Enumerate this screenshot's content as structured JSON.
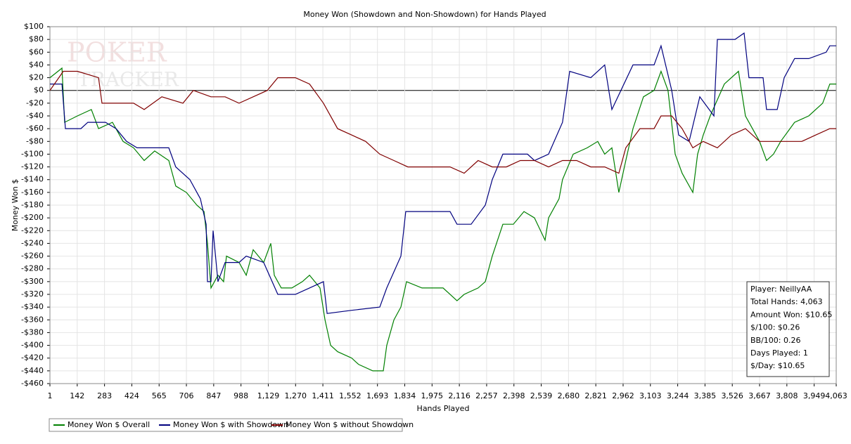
{
  "chart_data": {
    "type": "line",
    "title": "Money Won (Showdown and Non-Showdown) for Hands Played",
    "x_label": "Hands Played",
    "y_label": "Money Won $",
    "xlim": [
      1,
      4063
    ],
    "ylim": [
      -460,
      100
    ],
    "grid": true,
    "legend": "bottom",
    "xticks": [
      1,
      142,
      283,
      424,
      565,
      706,
      847,
      988,
      {
        "value": 1129,
        "label": "1,129"
      },
      {
        "value": 1270,
        "label": "1,270"
      },
      {
        "value": 1411,
        "label": "1,411"
      },
      {
        "value": 1552,
        "label": "1,552"
      },
      {
        "value": 1693,
        "label": "1,693"
      },
      {
        "value": 1834,
        "label": "1,834"
      },
      {
        "value": 1975,
        "label": "1,975"
      },
      {
        "value": 2116,
        "label": "2,116"
      },
      {
        "value": 2257,
        "label": "2,257"
      },
      {
        "value": 2398,
        "label": "2,398"
      },
      {
        "value": 2539,
        "label": "2,539"
      },
      {
        "value": 2680,
        "label": "2,680"
      },
      {
        "value": 2821,
        "label": "2,821"
      },
      {
        "value": 2962,
        "label": "2,962"
      },
      {
        "value": 3103,
        "label": "3,103"
      },
      {
        "value": 3244,
        "label": "3,244"
      },
      {
        "value": 3385,
        "label": "3,385"
      },
      {
        "value": 3526,
        "label": "3,526"
      },
      {
        "value": 3667,
        "label": "3,667"
      },
      {
        "value": 3808,
        "label": "3,808"
      },
      {
        "value": 3949,
        "label": "3,949"
      },
      {
        "value": 4063,
        "label": "4,063"
      }
    ],
    "yticks": [
      {
        "value": 100,
        "label": "$100"
      },
      {
        "value": 80,
        "label": "$80"
      },
      {
        "value": 60,
        "label": "$60"
      },
      {
        "value": 40,
        "label": "$40"
      },
      {
        "value": 20,
        "label": "$20"
      },
      {
        "value": 0,
        "label": "$0"
      },
      {
        "value": -20,
        "label": "-$20"
      },
      {
        "value": -40,
        "label": "-$40"
      },
      {
        "value": -60,
        "label": "-$60"
      },
      {
        "value": -80,
        "label": "-$80"
      },
      {
        "value": -100,
        "label": "-$100"
      },
      {
        "value": -120,
        "label": "-$120"
      },
      {
        "value": -140,
        "label": "-$140"
      },
      {
        "value": -160,
        "label": "-$160"
      },
      {
        "value": -180,
        "label": "-$180"
      },
      {
        "value": -200,
        "label": "-$200"
      },
      {
        "value": -220,
        "label": "-$220"
      },
      {
        "value": -240,
        "label": "-$240"
      },
      {
        "value": -260,
        "label": "-$260"
      },
      {
        "value": -280,
        "label": "-$280"
      },
      {
        "value": -300,
        "label": "-$300"
      },
      {
        "value": -320,
        "label": "-$320"
      },
      {
        "value": -340,
        "label": "-$340"
      },
      {
        "value": -360,
        "label": "-$360"
      },
      {
        "value": -380,
        "label": "-$380"
      },
      {
        "value": -400,
        "label": "-$400"
      },
      {
        "value": -420,
        "label": "-$420"
      },
      {
        "value": -440,
        "label": "-$440"
      },
      {
        "value": -460,
        "label": "-$460"
      }
    ],
    "series": [
      {
        "name": "Money Won $ Overall",
        "color": "#008000",
        "x": [
          1,
          63,
          77,
          143,
          215,
          252,
          324,
          379,
          433,
          488,
          542,
          615,
          651,
          706,
          760,
          797,
          815,
          833,
          869,
          898,
          913,
          978,
          1015,
          1051,
          1105,
          1142,
          1160,
          1196,
          1251,
          1305,
          1342,
          1396,
          1422,
          1451,
          1487,
          1560,
          1596,
          1669,
          1723,
          1741,
          1778,
          1814,
          1843,
          1923,
          2032,
          2104,
          2141,
          2213,
          2250,
          2286,
          2341,
          2395,
          2450,
          2504,
          2559,
          2577,
          2631,
          2649,
          2704,
          2777,
          2831,
          2867,
          2904,
          2940,
          2976,
          3013,
          3067,
          3122,
          3158,
          3194,
          3231,
          3267,
          3322,
          3347,
          3376,
          3412,
          3485,
          3558,
          3594,
          3667,
          3703,
          3739,
          3776,
          3848,
          3921,
          3993,
          4030,
          4063
        ],
        "values": [
          20,
          35,
          -50,
          -40,
          -30,
          -60,
          -50,
          -80,
          -90,
          -110,
          -95,
          -110,
          -150,
          -160,
          -180,
          -190,
          -240,
          -310,
          -290,
          -300,
          -260,
          -270,
          -290,
          -250,
          -270,
          -240,
          -290,
          -310,
          -310,
          -300,
          -290,
          -310,
          -360,
          -400,
          -410,
          -420,
          -430,
          -440,
          -440,
          -400,
          -360,
          -340,
          -300,
          -310,
          -310,
          -330,
          -320,
          -310,
          -300,
          -260,
          -210,
          -210,
          -190,
          -200,
          -235,
          -200,
          -170,
          -140,
          -100,
          -90,
          -80,
          -100,
          -90,
          -160,
          -110,
          -60,
          -10,
          0,
          30,
          0,
          -100,
          -130,
          -160,
          -100,
          -70,
          -40,
          10,
          30,
          -40,
          -80,
          -110,
          -100,
          -80,
          -50,
          -40,
          -20,
          10,
          10
        ]
      },
      {
        "name": "Money Won $ with Showdown",
        "color": "#00007f",
        "x": [
          1,
          63,
          81,
          161,
          197,
          288,
          343,
          397,
          451,
          615,
          651,
          724,
          778,
          808,
          815,
          833,
          844,
          869,
          906,
          978,
          1015,
          1105,
          1178,
          1269,
          1342,
          1414,
          1433,
          1560,
          1705,
          1741,
          1814,
          1839,
          1923,
          2068,
          2104,
          2177,
          2250,
          2286,
          2341,
          2395,
          2468,
          2504,
          2577,
          2649,
          2686,
          2795,
          2867,
          2904,
          3013,
          3122,
          3158,
          3213,
          3249,
          3303,
          3358,
          3431,
          3449,
          3540,
          3587,
          3612,
          3685,
          3703,
          3758,
          3794,
          3848,
          3921,
          4011,
          4030,
          4063
        ],
        "values": [
          10,
          10,
          -60,
          -60,
          -50,
          -50,
          -60,
          -80,
          -90,
          -90,
          -120,
          -140,
          -170,
          -210,
          -300,
          -300,
          -220,
          -300,
          -270,
          -270,
          -260,
          -270,
          -320,
          -320,
          -310,
          -300,
          -350,
          -345,
          -340,
          -310,
          -260,
          -190,
          -190,
          -190,
          -210,
          -210,
          -180,
          -140,
          -100,
          -100,
          -100,
          -110,
          -100,
          -50,
          30,
          20,
          40,
          -30,
          40,
          40,
          70,
          0,
          -70,
          -80,
          -10,
          -40,
          80,
          80,
          90,
          20,
          20,
          -30,
          -30,
          20,
          50,
          50,
          60,
          70,
          70
        ]
      },
      {
        "name": "Money Won $ without Showdown",
        "color": "#800000",
        "x": [
          1,
          70,
          143,
          252,
          270,
          361,
          433,
          488,
          579,
          688,
          742,
          833,
          906,
          978,
          1124,
          1178,
          1269,
          1342,
          1414,
          1487,
          1560,
          1632,
          1705,
          1778,
          1850,
          1923,
          2068,
          2141,
          2213,
          2286,
          2359,
          2431,
          2504,
          2577,
          2649,
          2722,
          2795,
          2867,
          2940,
          2976,
          3049,
          3122,
          3158,
          3213,
          3267,
          3322,
          3376,
          3449,
          3521,
          3594,
          3667,
          3739,
          3812,
          3885,
          3957,
          4030,
          4063
        ],
        "values": [
          0,
          30,
          30,
          20,
          -20,
          -20,
          -20,
          -30,
          -10,
          -20,
          0,
          -10,
          -10,
          -20,
          0,
          20,
          20,
          10,
          -20,
          -60,
          -70,
          -80,
          -100,
          -110,
          -120,
          -120,
          -120,
          -130,
          -110,
          -120,
          -120,
          -110,
          -110,
          -120,
          -110,
          -110,
          -120,
          -120,
          -130,
          -90,
          -60,
          -60,
          -40,
          -40,
          -60,
          -90,
          -80,
          -90,
          -70,
          -60,
          -80,
          -80,
          -80,
          -80,
          -70,
          -60,
          -60
        ]
      }
    ],
    "stats": [
      "Player: NeillyAA",
      "Total Hands: 4,063",
      "Amount Won: $10.65",
      "$/100: $0.26",
      "BB/100: 0.26",
      "Days Played: 1",
      "$/Day: $10.65"
    ]
  }
}
